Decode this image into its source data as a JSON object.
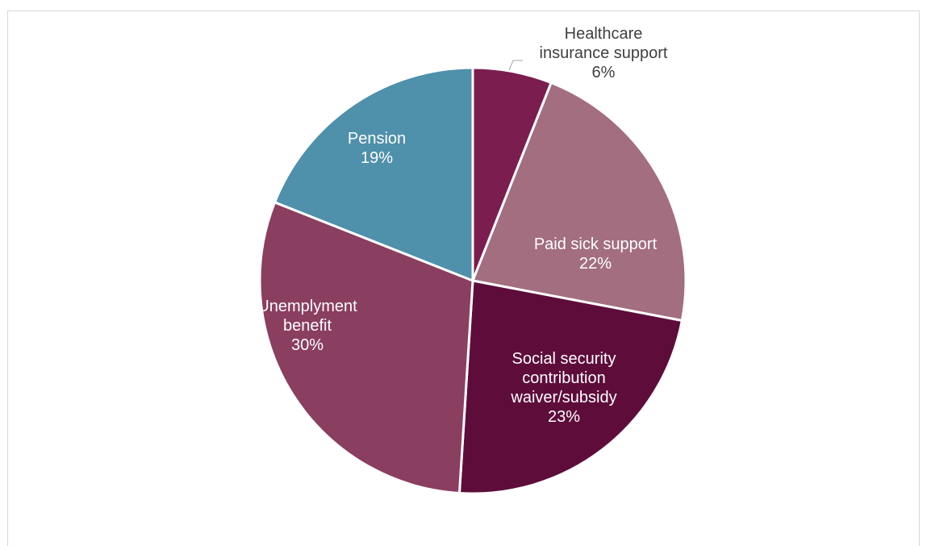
{
  "chart_data": {
    "type": "pie",
    "title": "",
    "slices": [
      {
        "label": [
          "Healthcare",
          "insurance support"
        ],
        "value": 6,
        "display": "6%",
        "color": "#7b1e4f",
        "text_color": "#404040"
      },
      {
        "label": [
          "Paid sick support"
        ],
        "value": 22,
        "display": "22%",
        "color": "#a26e80",
        "text_color": "#ffffff"
      },
      {
        "label": [
          "Social security",
          "contribution",
          "waiver/subsidy"
        ],
        "value": 23,
        "display": "23%",
        "color": "#5e0d3b",
        "text_color": "#ffffff"
      },
      {
        "label": [
          "Unemplyment",
          "benefit"
        ],
        "value": 30,
        "display": "30%",
        "color": "#8a3e60",
        "text_color": "#ffffff"
      },
      {
        "label": [
          "Pension"
        ],
        "value": 19,
        "display": "19%",
        "color": "#4f90ab",
        "text_color": "#ffffff"
      }
    ],
    "start_angle": "12 o'clock",
    "direction": "clockwise",
    "slice_separator_color": "#ffffff",
    "legend": "none"
  }
}
